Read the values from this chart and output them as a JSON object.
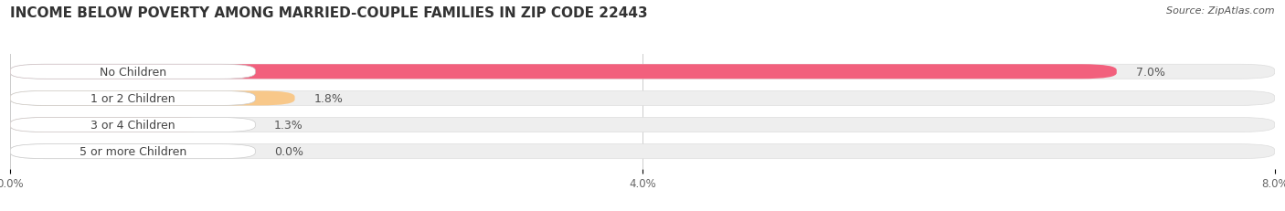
{
  "title": "INCOME BELOW POVERTY AMONG MARRIED-COUPLE FAMILIES IN ZIP CODE 22443",
  "source": "Source: ZipAtlas.com",
  "categories": [
    "No Children",
    "1 or 2 Children",
    "3 or 4 Children",
    "5 or more Children"
  ],
  "values": [
    7.0,
    1.8,
    1.3,
    0.0
  ],
  "bar_colors": [
    "#f2607d",
    "#f8c88a",
    "#f0a090",
    "#a8c8f0"
  ],
  "value_labels": [
    "7.0%",
    "1.8%",
    "1.3%",
    "0.0%"
  ],
  "xlim": [
    0,
    8.0
  ],
  "xticks": [
    0.0,
    4.0,
    8.0
  ],
  "xticklabels": [
    "0.0%",
    "4.0%",
    "8.0%"
  ],
  "background_color": "#ffffff",
  "bar_background_color": "#eeeeee",
  "title_fontsize": 11,
  "label_fontsize": 9,
  "value_fontsize": 9,
  "source_fontsize": 8
}
